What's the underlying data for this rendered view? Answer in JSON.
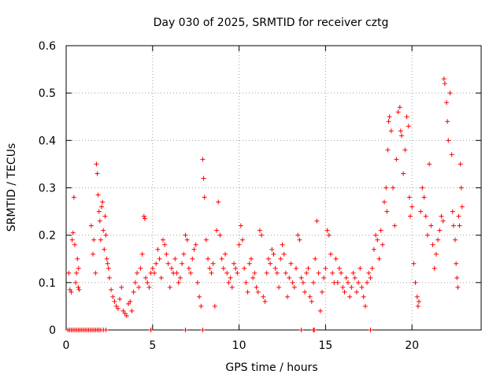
{
  "chart_data": {
    "type": "scatter",
    "title": "Day 030 of 2025, SRMTID for receiver cztg",
    "xlabel": "GPS time / hours",
    "ylabel": "SRMTID / TECUs",
    "xlim": [
      0,
      24
    ],
    "ylim": [
      0,
      0.6
    ],
    "xticks": [
      0,
      5,
      10,
      15,
      20
    ],
    "yticks": [
      0,
      0.1,
      0.2,
      0.3,
      0.4,
      0.5,
      0.6
    ],
    "ytick_labels": [
      "0",
      "0.1",
      "0.2",
      "0.3",
      "0.4",
      "0.5",
      "0.6"
    ],
    "grid": true,
    "marker": "plus",
    "marker_color": "#ff0000",
    "series": [
      {
        "name": "SRMTID",
        "points": [
          [
            0.1,
            0.0
          ],
          [
            0.2,
            0.0
          ],
          [
            0.3,
            0.0
          ],
          [
            0.4,
            0.0
          ],
          [
            0.5,
            0.0
          ],
          [
            0.6,
            0.0
          ],
          [
            0.7,
            0.0
          ],
          [
            0.8,
            0.0
          ],
          [
            0.9,
            0.0
          ],
          [
            1.0,
            0.0
          ],
          [
            1.1,
            0.0
          ],
          [
            1.2,
            0.0
          ],
          [
            1.3,
            0.0
          ],
          [
            1.4,
            0.0
          ],
          [
            1.5,
            0.0
          ],
          [
            1.6,
            0.0
          ],
          [
            1.7,
            0.0
          ],
          [
            1.8,
            0.0
          ],
          [
            1.9,
            0.0
          ],
          [
            2.0,
            0.0
          ],
          [
            2.15,
            0.0
          ],
          [
            2.3,
            0.0
          ],
          [
            4.9,
            0.0
          ],
          [
            6.9,
            0.0
          ],
          [
            7.9,
            0.0
          ],
          [
            13.6,
            0.0
          ],
          [
            14.3,
            0.0
          ],
          [
            14.35,
            0.0
          ],
          [
            17.6,
            0.0
          ],
          [
            0.15,
            0.12
          ],
          [
            0.22,
            0.085
          ],
          [
            0.3,
            0.08
          ],
          [
            0.35,
            0.19
          ],
          [
            0.4,
            0.205
          ],
          [
            0.45,
            0.28
          ],
          [
            0.5,
            0.18
          ],
          [
            0.55,
            0.1
          ],
          [
            0.6,
            0.12
          ],
          [
            0.65,
            0.15
          ],
          [
            0.7,
            0.09
          ],
          [
            0.72,
            0.13
          ],
          [
            0.75,
            0.085
          ],
          [
            1.45,
            0.22
          ],
          [
            1.55,
            0.16
          ],
          [
            1.6,
            0.19
          ],
          [
            1.7,
            0.12
          ],
          [
            1.75,
            0.35
          ],
          [
            1.8,
            0.33
          ],
          [
            1.85,
            0.285
          ],
          [
            1.9,
            0.25
          ],
          [
            1.95,
            0.23
          ],
          [
            2.0,
            0.19
          ],
          [
            2.05,
            0.26
          ],
          [
            2.1,
            0.27
          ],
          [
            2.15,
            0.21
          ],
          [
            2.2,
            0.17
          ],
          [
            2.25,
            0.24
          ],
          [
            2.3,
            0.2
          ],
          [
            2.35,
            0.15
          ],
          [
            2.4,
            0.14
          ],
          [
            2.45,
            0.13
          ],
          [
            2.5,
            0.11
          ],
          [
            2.6,
            0.085
          ],
          [
            2.7,
            0.07
          ],
          [
            2.8,
            0.06
          ],
          [
            2.9,
            0.05
          ],
          [
            3.0,
            0.045
          ],
          [
            3.1,
            0.065
          ],
          [
            3.2,
            0.09
          ],
          [
            3.3,
            0.04
          ],
          [
            3.4,
            0.035
          ],
          [
            3.5,
            0.03
          ],
          [
            3.6,
            0.055
          ],
          [
            3.7,
            0.06
          ],
          [
            3.8,
            0.04
          ],
          [
            3.9,
            0.08
          ],
          [
            4.0,
            0.1
          ],
          [
            4.1,
            0.12
          ],
          [
            4.2,
            0.09
          ],
          [
            4.3,
            0.13
          ],
          [
            4.4,
            0.16
          ],
          [
            4.5,
            0.24
          ],
          [
            4.55,
            0.235
          ],
          [
            4.6,
            0.11
          ],
          [
            4.7,
            0.1
          ],
          [
            4.8,
            0.09
          ],
          [
            4.9,
            0.12
          ],
          [
            5.0,
            0.13
          ],
          [
            5.1,
            0.12
          ],
          [
            5.2,
            0.14
          ],
          [
            5.3,
            0.17
          ],
          [
            5.4,
            0.15
          ],
          [
            5.5,
            0.11
          ],
          [
            5.6,
            0.19
          ],
          [
            5.7,
            0.18
          ],
          [
            5.8,
            0.16
          ],
          [
            5.9,
            0.14
          ],
          [
            6.0,
            0.09
          ],
          [
            6.1,
            0.13
          ],
          [
            6.2,
            0.12
          ],
          [
            6.3,
            0.15
          ],
          [
            6.4,
            0.12
          ],
          [
            6.5,
            0.1
          ],
          [
            6.6,
            0.11
          ],
          [
            6.7,
            0.14
          ],
          [
            6.8,
            0.16
          ],
          [
            6.9,
            0.2
          ],
          [
            7.0,
            0.19
          ],
          [
            7.1,
            0.13
          ],
          [
            7.2,
            0.12
          ],
          [
            7.3,
            0.15
          ],
          [
            7.4,
            0.17
          ],
          [
            7.5,
            0.18
          ],
          [
            7.6,
            0.1
          ],
          [
            7.7,
            0.07
          ],
          [
            7.8,
            0.05
          ],
          [
            7.9,
            0.36
          ],
          [
            7.95,
            0.32
          ],
          [
            8.0,
            0.28
          ],
          [
            8.1,
            0.19
          ],
          [
            8.2,
            0.15
          ],
          [
            8.3,
            0.13
          ],
          [
            8.4,
            0.12
          ],
          [
            8.5,
            0.14
          ],
          [
            8.6,
            0.05
          ],
          [
            8.7,
            0.21
          ],
          [
            8.8,
            0.27
          ],
          [
            8.9,
            0.2
          ],
          [
            9.0,
            0.15
          ],
          [
            9.1,
            0.13
          ],
          [
            9.2,
            0.16
          ],
          [
            9.3,
            0.12
          ],
          [
            9.4,
            0.1
          ],
          [
            9.5,
            0.11
          ],
          [
            9.6,
            0.09
          ],
          [
            9.7,
            0.14
          ],
          [
            9.8,
            0.13
          ],
          [
            9.9,
            0.12
          ],
          [
            10.0,
            0.18
          ],
          [
            10.1,
            0.22
          ],
          [
            10.2,
            0.19
          ],
          [
            10.3,
            0.13
          ],
          [
            10.4,
            0.1
          ],
          [
            10.5,
            0.08
          ],
          [
            10.6,
            0.14
          ],
          [
            10.7,
            0.15
          ],
          [
            10.8,
            0.11
          ],
          [
            10.9,
            0.12
          ],
          [
            11.0,
            0.09
          ],
          [
            11.1,
            0.08
          ],
          [
            11.2,
            0.21
          ],
          [
            11.3,
            0.2
          ],
          [
            11.4,
            0.07
          ],
          [
            11.5,
            0.06
          ],
          [
            11.6,
            0.12
          ],
          [
            11.7,
            0.15
          ],
          [
            11.8,
            0.14
          ],
          [
            11.9,
            0.17
          ],
          [
            12.0,
            0.16
          ],
          [
            12.1,
            0.13
          ],
          [
            12.2,
            0.12
          ],
          [
            12.3,
            0.09
          ],
          [
            12.4,
            0.15
          ],
          [
            12.5,
            0.18
          ],
          [
            12.6,
            0.16
          ],
          [
            12.7,
            0.12
          ],
          [
            12.8,
            0.07
          ],
          [
            12.9,
            0.11
          ],
          [
            13.0,
            0.14
          ],
          [
            13.1,
            0.1
          ],
          [
            13.2,
            0.09
          ],
          [
            13.3,
            0.13
          ],
          [
            13.4,
            0.2
          ],
          [
            13.5,
            0.19
          ],
          [
            13.6,
            0.11
          ],
          [
            13.7,
            0.1
          ],
          [
            13.8,
            0.08
          ],
          [
            13.9,
            0.12
          ],
          [
            14.0,
            0.13
          ],
          [
            14.1,
            0.07
          ],
          [
            14.2,
            0.06
          ],
          [
            14.3,
            0.1
          ],
          [
            14.4,
            0.15
          ],
          [
            14.5,
            0.23
          ],
          [
            14.6,
            0.12
          ],
          [
            14.7,
            0.04
          ],
          [
            14.8,
            0.08
          ],
          [
            14.9,
            0.11
          ],
          [
            15.0,
            0.13
          ],
          [
            15.1,
            0.21
          ],
          [
            15.2,
            0.2
          ],
          [
            15.3,
            0.16
          ],
          [
            15.4,
            0.12
          ],
          [
            15.5,
            0.1
          ],
          [
            15.6,
            0.15
          ],
          [
            15.7,
            0.1
          ],
          [
            15.8,
            0.13
          ],
          [
            15.9,
            0.12
          ],
          [
            16.0,
            0.09
          ],
          [
            16.1,
            0.08
          ],
          [
            16.2,
            0.11
          ],
          [
            16.3,
            0.1
          ],
          [
            16.4,
            0.07
          ],
          [
            16.5,
            0.09
          ],
          [
            16.6,
            0.12
          ],
          [
            16.7,
            0.11
          ],
          [
            16.8,
            0.08
          ],
          [
            16.9,
            0.1
          ],
          [
            17.0,
            0.13
          ],
          [
            17.1,
            0.09
          ],
          [
            17.2,
            0.07
          ],
          [
            17.3,
            0.05
          ],
          [
            17.4,
            0.1
          ],
          [
            17.5,
            0.12
          ],
          [
            17.6,
            0.11
          ],
          [
            17.7,
            0.13
          ],
          [
            17.8,
            0.17
          ],
          [
            17.9,
            0.2
          ],
          [
            18.0,
            0.19
          ],
          [
            18.1,
            0.15
          ],
          [
            18.2,
            0.21
          ],
          [
            18.3,
            0.18
          ],
          [
            18.4,
            0.27
          ],
          [
            18.5,
            0.3
          ],
          [
            18.55,
            0.25
          ],
          [
            18.6,
            0.38
          ],
          [
            18.65,
            0.44
          ],
          [
            18.7,
            0.45
          ],
          [
            18.8,
            0.42
          ],
          [
            18.9,
            0.3
          ],
          [
            19.0,
            0.22
          ],
          [
            19.1,
            0.36
          ],
          [
            19.2,
            0.46
          ],
          [
            19.3,
            0.47
          ],
          [
            19.35,
            0.42
          ],
          [
            19.4,
            0.41
          ],
          [
            19.5,
            0.33
          ],
          [
            19.6,
            0.38
          ],
          [
            19.7,
            0.45
          ],
          [
            19.8,
            0.43
          ],
          [
            19.85,
            0.28
          ],
          [
            19.9,
            0.24
          ],
          [
            20.0,
            0.26
          ],
          [
            20.1,
            0.14
          ],
          [
            20.2,
            0.1
          ],
          [
            20.3,
            0.07
          ],
          [
            20.35,
            0.05
          ],
          [
            20.4,
            0.06
          ],
          [
            20.5,
            0.25
          ],
          [
            20.6,
            0.3
          ],
          [
            20.7,
            0.28
          ],
          [
            20.8,
            0.24
          ],
          [
            20.9,
            0.2
          ],
          [
            21.0,
            0.35
          ],
          [
            21.1,
            0.22
          ],
          [
            21.2,
            0.18
          ],
          [
            21.3,
            0.13
          ],
          [
            21.4,
            0.16
          ],
          [
            21.5,
            0.19
          ],
          [
            21.6,
            0.21
          ],
          [
            21.7,
            0.24
          ],
          [
            21.8,
            0.23
          ],
          [
            21.85,
            0.53
          ],
          [
            21.9,
            0.52
          ],
          [
            22.0,
            0.48
          ],
          [
            22.05,
            0.44
          ],
          [
            22.1,
            0.4
          ],
          [
            22.2,
            0.5
          ],
          [
            22.3,
            0.37
          ],
          [
            22.35,
            0.25
          ],
          [
            22.4,
            0.22
          ],
          [
            22.5,
            0.19
          ],
          [
            22.55,
            0.14
          ],
          [
            22.6,
            0.11
          ],
          [
            22.65,
            0.09
          ],
          [
            22.7,
            0.24
          ],
          [
            22.75,
            0.22
          ],
          [
            22.8,
            0.35
          ],
          [
            22.85,
            0.3
          ],
          [
            22.9,
            0.26
          ]
        ]
      }
    ]
  }
}
